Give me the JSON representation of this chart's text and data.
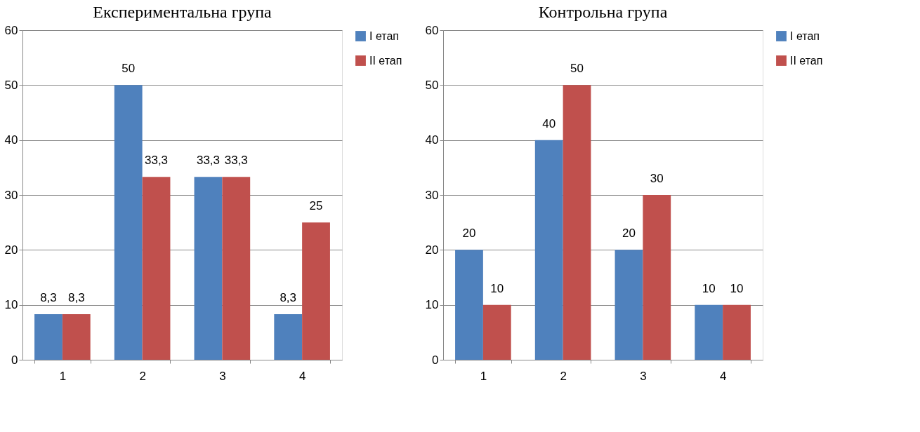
{
  "chart_data": [
    {
      "type": "bar",
      "title": "Експериментальна група",
      "categories": [
        "1",
        "2",
        "3",
        "4"
      ],
      "series": [
        {
          "name": "I етап",
          "color": "#4f81bd",
          "values": [
            8.3,
            50,
            33.3,
            8.3
          ],
          "value_labels": [
            "8,3",
            "50",
            "33,3",
            "8,3"
          ]
        },
        {
          "name": "II етап",
          "color": "#c0504d",
          "values": [
            8.3,
            33.3,
            33.3,
            25
          ],
          "value_labels": [
            "8,3",
            "33,3",
            "33,3",
            "25"
          ]
        }
      ],
      "ylim": [
        0,
        60
      ],
      "yticks": [
        0,
        10,
        20,
        30,
        40,
        50,
        60
      ],
      "grid": "y",
      "legend": "right"
    },
    {
      "type": "bar",
      "title": "Контрольна група",
      "categories": [
        "1",
        "2",
        "3",
        "4"
      ],
      "series": [
        {
          "name": "I етап",
          "color": "#4f81bd",
          "values": [
            20,
            40,
            20,
            10
          ],
          "value_labels": [
            "20",
            "40",
            "20",
            "10"
          ]
        },
        {
          "name": "II етап",
          "color": "#c0504d",
          "values": [
            10,
            50,
            30,
            10
          ],
          "value_labels": [
            "10",
            "50",
            "30",
            "10"
          ]
        }
      ],
      "ylim": [
        0,
        60
      ],
      "yticks": [
        0,
        10,
        20,
        30,
        40,
        50,
        60
      ],
      "grid": "y",
      "legend": "right"
    }
  ]
}
